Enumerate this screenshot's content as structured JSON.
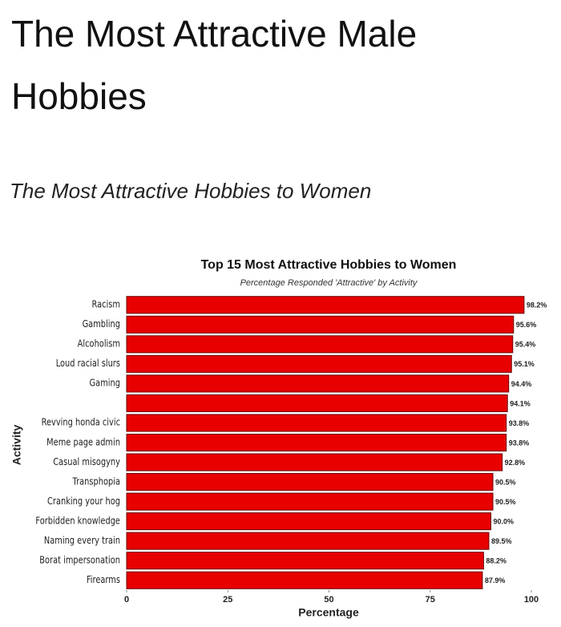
{
  "header": {
    "title": "The Most Attractive Male Hobbies",
    "subtitle": "The Most Attractive Hobbies to Women"
  },
  "chart_data": {
    "type": "barh",
    "title": "Top 15 Most Attractive Hobbies to Women",
    "subtitle": "Percentage Responded 'Attractive' by Activity",
    "xlabel": "Percentage",
    "ylabel": "Activity",
    "categories": [
      "Racism",
      "Gambling",
      "Alcoholism",
      "Loud racial slurs",
      "Gaming",
      null,
      "Revving honda civic",
      "Meme page admin",
      "Casual misogyny",
      "Transphopia",
      "Cranking your hog",
      "Forbidden knowledge",
      "Naming every train",
      "Borat impersonation",
      "Firearms"
    ],
    "values": [
      98.2,
      95.6,
      95.4,
      95.1,
      94.4,
      94.1,
      93.8,
      93.8,
      92.8,
      90.5,
      90.5,
      90.0,
      89.5,
      88.2,
      87.9
    ],
    "value_labels": [
      "98.2%",
      "95.6%",
      "95.4%",
      "95.1%",
      "94.4%",
      "94.1%",
      "93.8%",
      "93.8%",
      "92.8%",
      "90.5%",
      "90.5%",
      "90.0%",
      "89.5%",
      "88.2%",
      "87.9%"
    ],
    "color": "#e80000",
    "xlim": [
      0,
      100
    ],
    "xticks": [
      0,
      25,
      50,
      75,
      100
    ]
  }
}
